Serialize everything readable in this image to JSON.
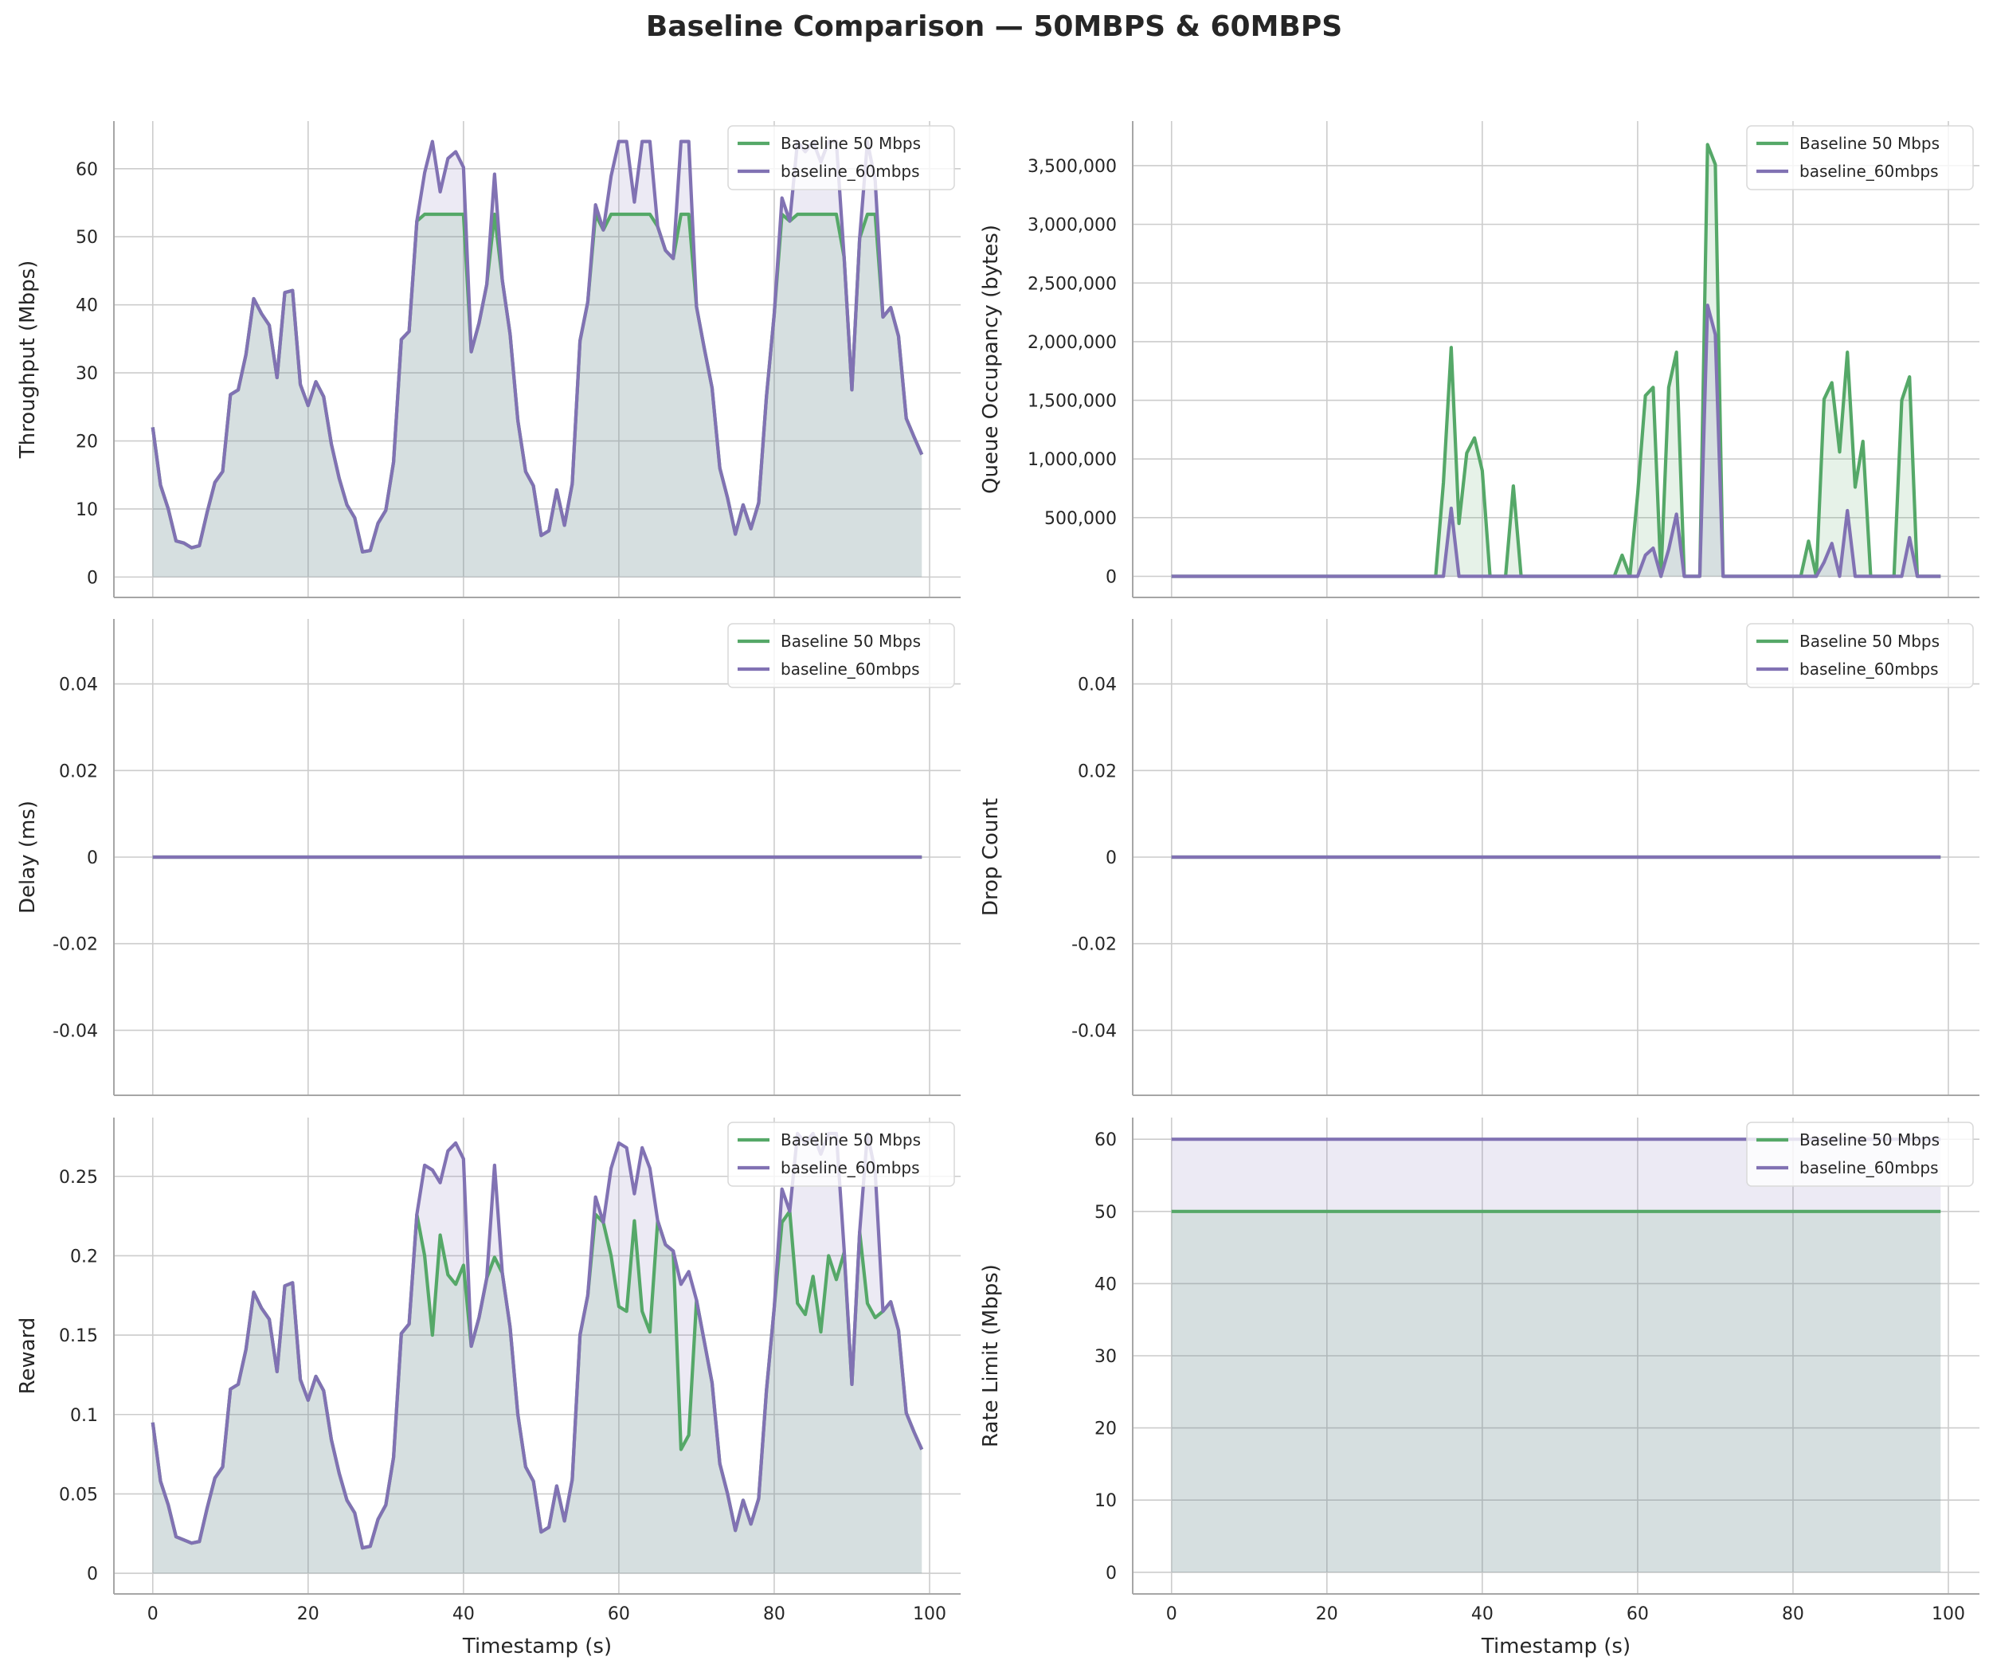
{
  "title": "Baseline Comparison — 50MBPS & 60MBPS",
  "colors": {
    "series_a": "#55a868",
    "series_b": "#8172b3",
    "grid": "#cccccc",
    "spine": "#a6a6a6"
  },
  "legend": [
    "Baseline 50 Mbps",
    "baseline_60mbps"
  ],
  "chart_data": [
    {
      "type": "area",
      "ylabel": "Throughput (Mbps)",
      "xlabel": "",
      "xlim": [
        -5,
        104
      ],
      "ylim": [
        -3,
        67
      ],
      "xticks": [
        0,
        20,
        40,
        60,
        80,
        100
      ],
      "xtick_labels": [],
      "yticks": [
        0,
        10,
        20,
        30,
        40,
        50,
        60
      ],
      "ytick_labels": [
        "0",
        "10",
        "20",
        "30",
        "40",
        "50",
        "60"
      ],
      "legend_position": "top-right",
      "series": [
        {
          "name": "Baseline 50 Mbps",
          "values": [
            22,
            13.5,
            10,
            5.3,
            5,
            4.3,
            4.6,
            9.5,
            13.9,
            15.5,
            26.8,
            27.5,
            32.7,
            40.9,
            38.7,
            37,
            29.3,
            41.8,
            42.1,
            28.3,
            25.2,
            28.7,
            26.5,
            19.5,
            14.5,
            10.6,
            8.7,
            3.7,
            3.9,
            7.9,
            9.8,
            16.9,
            34.9,
            36.1,
            52.3,
            53.3,
            53.3,
            53.3,
            53.3,
            53.3,
            53.3,
            33.1,
            37.3,
            43,
            53.3,
            43.6,
            35.7,
            23,
            15.5,
            13.4,
            6.1,
            6.8,
            12.8,
            7.6,
            13.7,
            34.7,
            40.4,
            53.3,
            51,
            53.3,
            53.3,
            53.3,
            53.3,
            53.3,
            53.3,
            51.5,
            48,
            46.8,
            53.3,
            53.3,
            39.7,
            33.6,
            27.8,
            16,
            11.6,
            6.3,
            10.6,
            7.1,
            10.9,
            26.5,
            38.6,
            53.3,
            52.3,
            53.3,
            53.3,
            53.3,
            53.3,
            53.3,
            53.3,
            47,
            27.5,
            49.8,
            53.3,
            53.3,
            38.2,
            39.6,
            35.4,
            23.3,
            20.6,
            18
          ]
        },
        {
          "name": "baseline_60mbps",
          "values": [
            22,
            13.5,
            10,
            5.3,
            5,
            4.3,
            4.6,
            9.5,
            13.9,
            15.5,
            26.8,
            27.5,
            32.7,
            40.9,
            38.7,
            37,
            29.3,
            41.8,
            42.1,
            28.3,
            25.2,
            28.7,
            26.5,
            19.5,
            14.5,
            10.6,
            8.7,
            3.7,
            3.9,
            7.9,
            9.8,
            16.9,
            34.9,
            36.1,
            52.3,
            59.4,
            64,
            56.6,
            61.5,
            62.5,
            60.2,
            33.1,
            37.3,
            43,
            59.2,
            43.6,
            35.7,
            23,
            15.5,
            13.4,
            6.1,
            6.8,
            12.8,
            7.6,
            13.7,
            34.7,
            40.4,
            54.7,
            51,
            58.9,
            64,
            64,
            55.1,
            64,
            64,
            51.5,
            48,
            46.8,
            64,
            64,
            39.7,
            33.6,
            27.8,
            16,
            11.6,
            6.3,
            10.6,
            7.1,
            10.9,
            26.5,
            38.6,
            55.7,
            52.3,
            64,
            62.5,
            64,
            61,
            64,
            64,
            47,
            27.5,
            49.8,
            64,
            58.3,
            38.2,
            39.6,
            35.4,
            23.3,
            20.6,
            18
          ]
        }
      ]
    },
    {
      "type": "area",
      "ylabel": "Queue Occupancy (bytes)",
      "xlabel": "",
      "xlim": [
        -5,
        104
      ],
      "ylim": [
        -180000,
        3880000
      ],
      "xticks": [
        0,
        20,
        40,
        60,
        80,
        100
      ],
      "xtick_labels": [],
      "yticks": [
        0,
        500000,
        1000000,
        1500000,
        2000000,
        2500000,
        3000000,
        3500000
      ],
      "ytick_labels": [
        "0",
        "500,000",
        "1,000,000",
        "1,500,000",
        "2,000,000",
        "2,500,000",
        "3,000,000",
        "3,500,000"
      ],
      "legend_position": "top-right",
      "series": [
        {
          "name": "Baseline 50 Mbps",
          "values": [
            0,
            0,
            0,
            0,
            0,
            0,
            0,
            0,
            0,
            0,
            0,
            0,
            0,
            0,
            0,
            0,
            0,
            0,
            0,
            0,
            0,
            0,
            0,
            0,
            0,
            0,
            0,
            0,
            0,
            0,
            0,
            0,
            0,
            0,
            0,
            800000,
            1950000,
            450000,
            1050000,
            1180000,
            900000,
            0,
            0,
            0,
            770000,
            0,
            0,
            0,
            0,
            0,
            0,
            0,
            0,
            0,
            0,
            0,
            0,
            0,
            180000,
            0,
            700000,
            1540000,
            1610000,
            0,
            1610000,
            1910000,
            0,
            0,
            0,
            3680000,
            3510000,
            0,
            0,
            0,
            0,
            0,
            0,
            0,
            0,
            0,
            0,
            0,
            300000,
            0,
            1510000,
            1650000,
            1060000,
            1910000,
            760000,
            1150000,
            0,
            0,
            0,
            0,
            1500000,
            1700000,
            0,
            0,
            0,
            0
          ]
        },
        {
          "name": "baseline_60mbps",
          "values": [
            0,
            0,
            0,
            0,
            0,
            0,
            0,
            0,
            0,
            0,
            0,
            0,
            0,
            0,
            0,
            0,
            0,
            0,
            0,
            0,
            0,
            0,
            0,
            0,
            0,
            0,
            0,
            0,
            0,
            0,
            0,
            0,
            0,
            0,
            0,
            0,
            580000,
            0,
            0,
            0,
            0,
            0,
            0,
            0,
            0,
            0,
            0,
            0,
            0,
            0,
            0,
            0,
            0,
            0,
            0,
            0,
            0,
            0,
            0,
            0,
            0,
            180000,
            240000,
            0,
            230000,
            530000,
            0,
            0,
            0,
            2310000,
            2060000,
            0,
            0,
            0,
            0,
            0,
            0,
            0,
            0,
            0,
            0,
            0,
            0,
            0,
            120000,
            280000,
            0,
            560000,
            0,
            0,
            0,
            0,
            0,
            0,
            0,
            330000,
            0,
            0,
            0,
            0
          ]
        }
      ]
    },
    {
      "type": "line",
      "ylabel": "Delay (ms)",
      "xlabel": "",
      "xlim": [
        -5,
        104
      ],
      "ylim": [
        -0.055,
        0.055
      ],
      "xticks": [
        0,
        20,
        40,
        60,
        80,
        100
      ],
      "xtick_labels": [],
      "yticks": [
        -0.04,
        -0.02,
        0,
        0.02,
        0.04
      ],
      "ytick_labels": [
        "-0.04",
        "-0.02",
        "0",
        "0.02",
        "0.04"
      ],
      "legend_position": "top-right",
      "series": [
        {
          "name": "Baseline 50 Mbps",
          "x_range": [
            0,
            99
          ],
          "constant": 0
        },
        {
          "name": "baseline_60mbps",
          "x_range": [
            0,
            99
          ],
          "constant": 0
        }
      ]
    },
    {
      "type": "line",
      "ylabel": "Drop Count",
      "xlabel": "",
      "xlim": [
        -5,
        104
      ],
      "ylim": [
        -0.055,
        0.055
      ],
      "xticks": [
        0,
        20,
        40,
        60,
        80,
        100
      ],
      "xtick_labels": [],
      "yticks": [
        -0.04,
        -0.02,
        0,
        0.02,
        0.04
      ],
      "ytick_labels": [
        "-0.04",
        "-0.02",
        "0",
        "0.02",
        "0.04"
      ],
      "legend_position": "top-right",
      "series": [
        {
          "name": "Baseline 50 Mbps",
          "x_range": [
            0,
            99
          ],
          "constant": 0
        },
        {
          "name": "baseline_60mbps",
          "x_range": [
            0,
            99
          ],
          "constant": 0
        }
      ]
    },
    {
      "type": "area",
      "ylabel": "Reward",
      "xlabel": "Timestamp (s)",
      "xlim": [
        -5,
        104
      ],
      "ylim": [
        -0.013,
        0.287
      ],
      "xticks": [
        0,
        20,
        40,
        60,
        80,
        100
      ],
      "xtick_labels": [
        "0",
        "20",
        "40",
        "60",
        "80",
        "100"
      ],
      "yticks": [
        0,
        0.05,
        0.1,
        0.15,
        0.2,
        0.25
      ],
      "ytick_labels": [
        "0",
        "0.05",
        "0.1",
        "0.15",
        "0.2",
        "0.25"
      ],
      "legend_position": "top-right",
      "series": [
        {
          "name": "Baseline 50 Mbps",
          "values": [
            0.095,
            0.058,
            0.043,
            0.023,
            0.021,
            0.019,
            0.02,
            0.041,
            0.06,
            0.067,
            0.116,
            0.119,
            0.141,
            0.177,
            0.167,
            0.16,
            0.127,
            0.181,
            0.183,
            0.122,
            0.109,
            0.124,
            0.115,
            0.084,
            0.063,
            0.046,
            0.038,
            0.016,
            0.017,
            0.034,
            0.043,
            0.073,
            0.151,
            0.157,
            0.226,
            0.2,
            0.15,
            0.213,
            0.188,
            0.182,
            0.194,
            0.143,
            0.161,
            0.186,
            0.199,
            0.189,
            0.155,
            0.1,
            0.067,
            0.058,
            0.026,
            0.029,
            0.055,
            0.033,
            0.059,
            0.15,
            0.175,
            0.226,
            0.221,
            0.2,
            0.168,
            0.165,
            0.222,
            0.165,
            0.152,
            0.222,
            0.207,
            0.203,
            0.078,
            0.087,
            0.172,
            0.146,
            0.12,
            0.069,
            0.05,
            0.027,
            0.046,
            0.031,
            0.047,
            0.115,
            0.167,
            0.221,
            0.228,
            0.17,
            0.163,
            0.187,
            0.152,
            0.2,
            0.185,
            0.202,
            0.119,
            0.215,
            0.17,
            0.161,
            0.165,
            0.171,
            0.153,
            0.101,
            0.089,
            0.078
          ]
        },
        {
          "name": "baseline_60mbps",
          "values": [
            0.095,
            0.058,
            0.043,
            0.023,
            0.021,
            0.019,
            0.02,
            0.041,
            0.06,
            0.067,
            0.116,
            0.119,
            0.141,
            0.177,
            0.167,
            0.16,
            0.127,
            0.181,
            0.183,
            0.122,
            0.109,
            0.124,
            0.115,
            0.084,
            0.063,
            0.046,
            0.038,
            0.016,
            0.017,
            0.034,
            0.043,
            0.073,
            0.151,
            0.157,
            0.226,
            0.257,
            0.254,
            0.246,
            0.266,
            0.271,
            0.261,
            0.143,
            0.161,
            0.186,
            0.257,
            0.189,
            0.155,
            0.1,
            0.067,
            0.058,
            0.026,
            0.029,
            0.055,
            0.033,
            0.059,
            0.15,
            0.175,
            0.237,
            0.221,
            0.255,
            0.271,
            0.268,
            0.239,
            0.268,
            0.255,
            0.222,
            0.207,
            0.203,
            0.182,
            0.19,
            0.172,
            0.146,
            0.12,
            0.069,
            0.05,
            0.027,
            0.046,
            0.031,
            0.047,
            0.115,
            0.167,
            0.242,
            0.228,
            0.277,
            0.271,
            0.277,
            0.264,
            0.277,
            0.277,
            0.204,
            0.119,
            0.215,
            0.277,
            0.253,
            0.165,
            0.171,
            0.153,
            0.101,
            0.089,
            0.078
          ]
        }
      ]
    },
    {
      "type": "area",
      "ylabel": "Rate Limit (Mbps)",
      "xlabel": "Timestamp (s)",
      "xlim": [
        -5,
        104
      ],
      "ylim": [
        -3,
        63
      ],
      "xticks": [
        0,
        20,
        40,
        60,
        80,
        100
      ],
      "xtick_labels": [
        "0",
        "20",
        "40",
        "60",
        "80",
        "100"
      ],
      "yticks": [
        0,
        10,
        20,
        30,
        40,
        50,
        60
      ],
      "ytick_labels": [
        "0",
        "10",
        "20",
        "30",
        "40",
        "50",
        "60"
      ],
      "legend_position": "top-right",
      "series": [
        {
          "name": "Baseline 50 Mbps",
          "x_range": [
            0,
            99
          ],
          "constant": 50
        },
        {
          "name": "baseline_60mbps",
          "x_range": [
            0,
            99
          ],
          "constant": 60
        }
      ]
    }
  ]
}
